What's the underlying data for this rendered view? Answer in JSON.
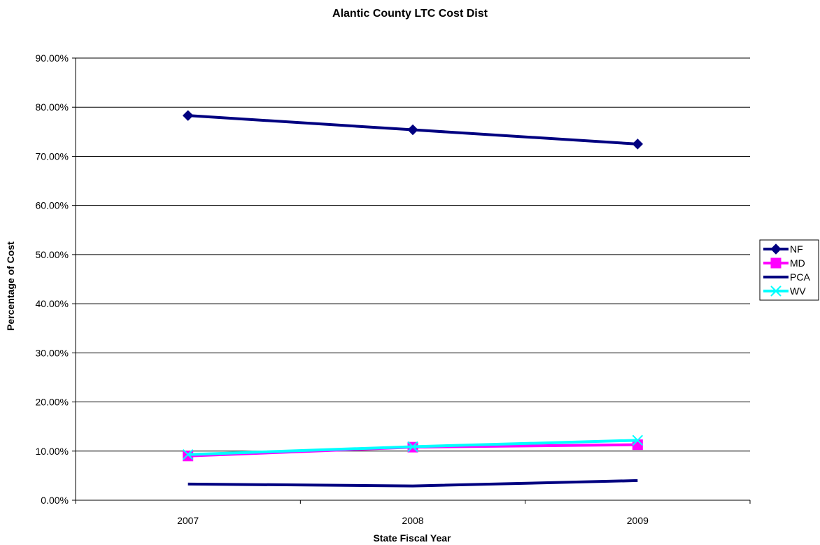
{
  "chart_data": {
    "type": "line",
    "title": "Alantic County LTC Cost Dist",
    "xlabel": "State Fiscal Year",
    "ylabel": "Percentage of Cost",
    "categories": [
      "2007",
      "2008",
      "2009"
    ],
    "ylim": [
      0,
      0.9
    ],
    "yticks": [
      "0.00%",
      "10.00%",
      "20.00%",
      "30.00%",
      "40.00%",
      "50.00%",
      "60.00%",
      "70.00%",
      "80.00%",
      "90.00%"
    ],
    "grid": true,
    "legend_position": "right",
    "series": [
      {
        "name": "NF",
        "values": [
          0.783,
          0.754,
          0.725
        ],
        "color": "#000080",
        "marker": "diamond"
      },
      {
        "name": "MD",
        "values": [
          0.09,
          0.108,
          0.113
        ],
        "color": "#FF00FF",
        "marker": "square"
      },
      {
        "name": "PCA",
        "values": [
          0.033,
          0.029,
          0.04
        ],
        "color": "#000080",
        "marker": "none"
      },
      {
        "name": "WV",
        "values": [
          0.093,
          0.109,
          0.122
        ],
        "color": "#00FFFF",
        "marker": "x"
      }
    ]
  }
}
